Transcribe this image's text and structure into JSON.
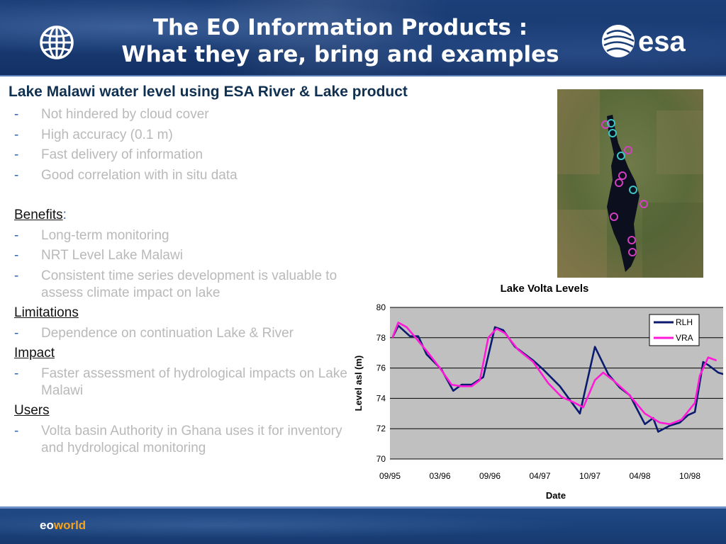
{
  "header": {
    "title_line1": "The EO Information Products :",
    "title_line2": "What they are, bring and examples",
    "logo_text": "esa"
  },
  "heading": "Lake Malawi water level using ESA River & Lake product",
  "bullets1": [
    "Not hindered by cloud cover",
    "High accuracy (0.1 m)",
    "Fast delivery of information",
    "Good correlation with in situ data"
  ],
  "benefits": {
    "title": "Benefits",
    "colon": ":",
    "items": [
      "Long-term monitoring",
      "NRT Level Lake Malawi",
      "Consistent time series development is valuable to assess climate impact on lake"
    ]
  },
  "limitations": {
    "title": "Limitations",
    "items": [
      "Dependence on continuation Lake & River"
    ]
  },
  "impact": {
    "title": "Impact",
    "items": [
      "Faster assessment of hydrological impacts on Lake Malawi"
    ]
  },
  "users": {
    "title": "Users",
    "items": [
      "Volta basin Authority in Ghana uses it for inventory and hydrological monitoring"
    ]
  },
  "dash": "-",
  "footer": {
    "brand_eo": "eo",
    "brand_world": "world"
  },
  "colors": {
    "header_blue": "#183a72",
    "dash_blue": "#2d63b6",
    "rlh": "#0a1a6e",
    "vra": "#ff19d8",
    "plot_bg": "#c0c0c0"
  },
  "chart_data": {
    "type": "line",
    "title": "Lake Volta Levels",
    "xlabel": "Date",
    "ylabel": "Level asl (m)",
    "ylim": [
      70,
      80
    ],
    "yticks": [
      70,
      72,
      74,
      76,
      78,
      80
    ],
    "xlim": [
      0,
      40
    ],
    "xticks": [
      {
        "x": 0,
        "label": "09/95"
      },
      {
        "x": 6,
        "label": "03/96"
      },
      {
        "x": 12,
        "label": "09/96"
      },
      {
        "x": 18,
        "label": "04/97"
      },
      {
        "x": 24,
        "label": "10/97"
      },
      {
        "x": 30,
        "label": "04/98"
      },
      {
        "x": 36,
        "label": "10/98"
      }
    ],
    "grid": true,
    "legend": "top-right",
    "series": [
      {
        "name": "RLH",
        "color": "#0a1a6e",
        "points": [
          [
            0.3,
            78.0
          ],
          [
            1,
            78.8
          ],
          [
            2.4,
            78.1
          ],
          [
            3.4,
            78.1
          ],
          [
            4.4,
            76.9
          ],
          [
            6.2,
            75.9
          ],
          [
            7.6,
            74.5
          ],
          [
            8.6,
            74.9
          ],
          [
            9.8,
            74.9
          ],
          [
            11.2,
            75.4
          ],
          [
            12.6,
            78.7
          ],
          [
            13.6,
            78.5
          ],
          [
            15,
            77.4
          ],
          [
            17.2,
            76.5
          ],
          [
            18.4,
            75.9
          ],
          [
            20.4,
            74.8
          ],
          [
            22.8,
            73.0
          ],
          [
            24.6,
            77.4
          ],
          [
            26.2,
            75.6
          ],
          [
            27.6,
            74.7
          ],
          [
            28.8,
            74.2
          ],
          [
            30.6,
            72.3
          ],
          [
            31.6,
            72.7
          ],
          [
            32.2,
            71.8
          ],
          [
            33.6,
            72.2
          ],
          [
            34.8,
            72.4
          ],
          [
            35.8,
            72.9
          ],
          [
            36.6,
            73.1
          ],
          [
            37.6,
            76.4
          ],
          [
            38.2,
            76.2
          ],
          [
            39.4,
            75.7
          ],
          [
            40.6,
            75.5
          ],
          [
            41.2,
            75.0
          ]
        ]
      },
      {
        "name": "VRA",
        "color": "#ff19d8",
        "points": [
          [
            0.3,
            78.0
          ],
          [
            1,
            79.0
          ],
          [
            2,
            78.7
          ],
          [
            3.4,
            77.8
          ],
          [
            4.6,
            77.0
          ],
          [
            6,
            76.0
          ],
          [
            7.4,
            74.9
          ],
          [
            8.6,
            74.8
          ],
          [
            9.8,
            74.8
          ],
          [
            10.8,
            75.2
          ],
          [
            11.8,
            78.0
          ],
          [
            12.8,
            78.6
          ],
          [
            13.8,
            78.3
          ],
          [
            15.4,
            77.2
          ],
          [
            17.2,
            76.4
          ],
          [
            19,
            75.0
          ],
          [
            20.6,
            74.1
          ],
          [
            22.2,
            73.7
          ],
          [
            23.2,
            73.4
          ],
          [
            24.6,
            75.2
          ],
          [
            25.6,
            75.7
          ],
          [
            27,
            75.1
          ],
          [
            28.6,
            74.3
          ],
          [
            30.6,
            73.0
          ],
          [
            32.4,
            72.4
          ],
          [
            33.6,
            72.3
          ],
          [
            35,
            72.6
          ],
          [
            36.6,
            73.7
          ],
          [
            37.2,
            75.5
          ],
          [
            38.2,
            76.7
          ],
          [
            39.2,
            76.5
          ]
        ]
      }
    ]
  }
}
